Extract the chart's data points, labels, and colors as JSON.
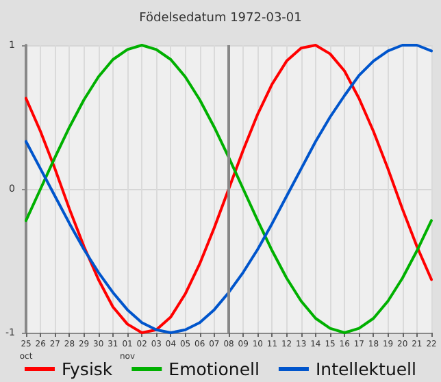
{
  "chart_data": {
    "type": "line",
    "title": "Födelsedatum 1972-03-01",
    "categories": [
      "25\noct",
      "26",
      "27",
      "28",
      "29",
      "30",
      "31",
      "01\nnov",
      "02",
      "03",
      "04",
      "05",
      "06",
      "07",
      "08",
      "09",
      "10",
      "11",
      "12",
      "13",
      "14",
      "15",
      "16",
      "17",
      "18",
      "19",
      "20",
      "21",
      "22"
    ],
    "series": [
      {
        "name": "Fysisk",
        "color": "#ff0000",
        "values": [
          0.63,
          0.4,
          0.14,
          -0.14,
          -0.4,
          -0.63,
          -0.82,
          -0.94,
          -1.0,
          -0.98,
          -0.89,
          -0.73,
          -0.52,
          -0.27,
          0,
          0.27,
          0.52,
          0.73,
          0.89,
          0.98,
          1.0,
          0.94,
          0.82,
          0.63,
          0.4,
          0.14,
          -0.14,
          -0.4,
          -0.63
        ]
      },
      {
        "name": "Emotionell",
        "color": "#00b000",
        "values": [
          -0.22,
          0,
          0.22,
          0.43,
          0.62,
          0.78,
          0.9,
          0.97,
          1.0,
          0.97,
          0.9,
          0.78,
          0.62,
          0.43,
          0.22,
          0,
          -0.22,
          -0.43,
          -0.62,
          -0.78,
          -0.9,
          -0.97,
          -1.0,
          -0.97,
          -0.9,
          -0.78,
          -0.62,
          -0.43,
          -0.22
        ]
      },
      {
        "name": "Intellektuell",
        "color": "#0055cc",
        "values": [
          0.33,
          0.14,
          -0.05,
          -0.24,
          -0.42,
          -0.58,
          -0.72,
          -0.84,
          -0.93,
          -0.98,
          -1.0,
          -0.98,
          -0.93,
          -0.84,
          -0.72,
          -0.58,
          -0.42,
          -0.24,
          -0.05,
          0.14,
          0.33,
          0.5,
          0.65,
          0.79,
          0.89,
          0.96,
          1.0,
          1.0,
          0.96
        ]
      }
    ],
    "ylim": [
      -1,
      1
    ],
    "yticks": [
      -1,
      0,
      1
    ],
    "grid": true,
    "legend": "bottom",
    "marker": "none",
    "line_style": "solid",
    "ref_lines": [
      {
        "axis": "x",
        "value": "08",
        "color": "#888888"
      }
    ]
  }
}
